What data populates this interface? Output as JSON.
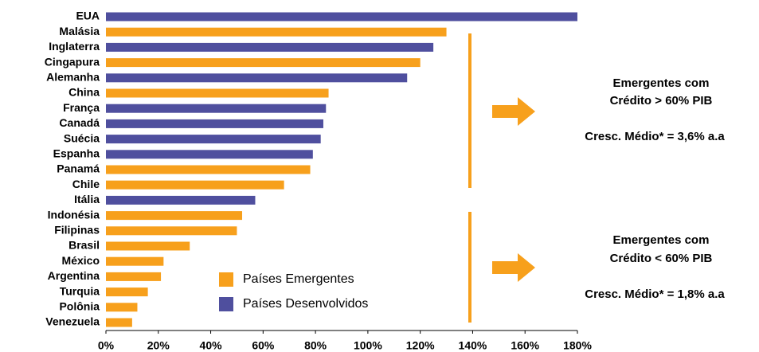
{
  "chart_data": {
    "type": "bar",
    "orientation": "horizontal",
    "categories": [
      "EUA",
      "Malásia",
      "Inglaterra",
      "Cingapura",
      "Alemanha",
      "China",
      "França",
      "Canadá",
      "Suécia",
      "Espanha",
      "Panamá",
      "Chile",
      "Itália",
      "Indonésia",
      "Filipinas",
      "Brasil",
      "México",
      "Argentina",
      "Turquia",
      "Polônia",
      "Venezuela"
    ],
    "series": [
      {
        "name": "Países Emergentes",
        "color": "#f7a01c",
        "values": [
          null,
          130,
          null,
          120,
          null,
          85,
          null,
          null,
          null,
          null,
          78,
          68,
          null,
          52,
          50,
          32,
          22,
          21,
          16,
          12,
          10
        ]
      },
      {
        "name": "Países Desenvolvidos",
        "color": "#4f4f9e",
        "values": [
          180,
          null,
          125,
          null,
          115,
          null,
          84,
          83,
          82,
          79,
          null,
          null,
          57,
          null,
          null,
          null,
          null,
          null,
          null,
          null,
          null
        ]
      }
    ],
    "xlim": [
      0,
      180
    ],
    "xticks": [
      {
        "value": 0,
        "label": "0%"
      },
      {
        "value": 20,
        "label": "20%"
      },
      {
        "value": 40,
        "label": "40%"
      },
      {
        "value": 60,
        "label": "60%"
      },
      {
        "value": 80,
        "label": "80%"
      },
      {
        "value": 100,
        "label": "100%"
      },
      {
        "value": 120,
        "label": "120%"
      },
      {
        "value": 140,
        "label": "140%"
      },
      {
        "value": 160,
        "label": "160%"
      },
      {
        "value": 180,
        "label": "180%"
      }
    ],
    "annotations": [
      "Emergentes com",
      "Crédito > 60% PIB",
      "Cresc. Médio* = 3,6% a.a",
      "Emergentes com",
      "Crédito < 60% PIB",
      "Cresc. Médio* = 1,8% a.a"
    ]
  }
}
